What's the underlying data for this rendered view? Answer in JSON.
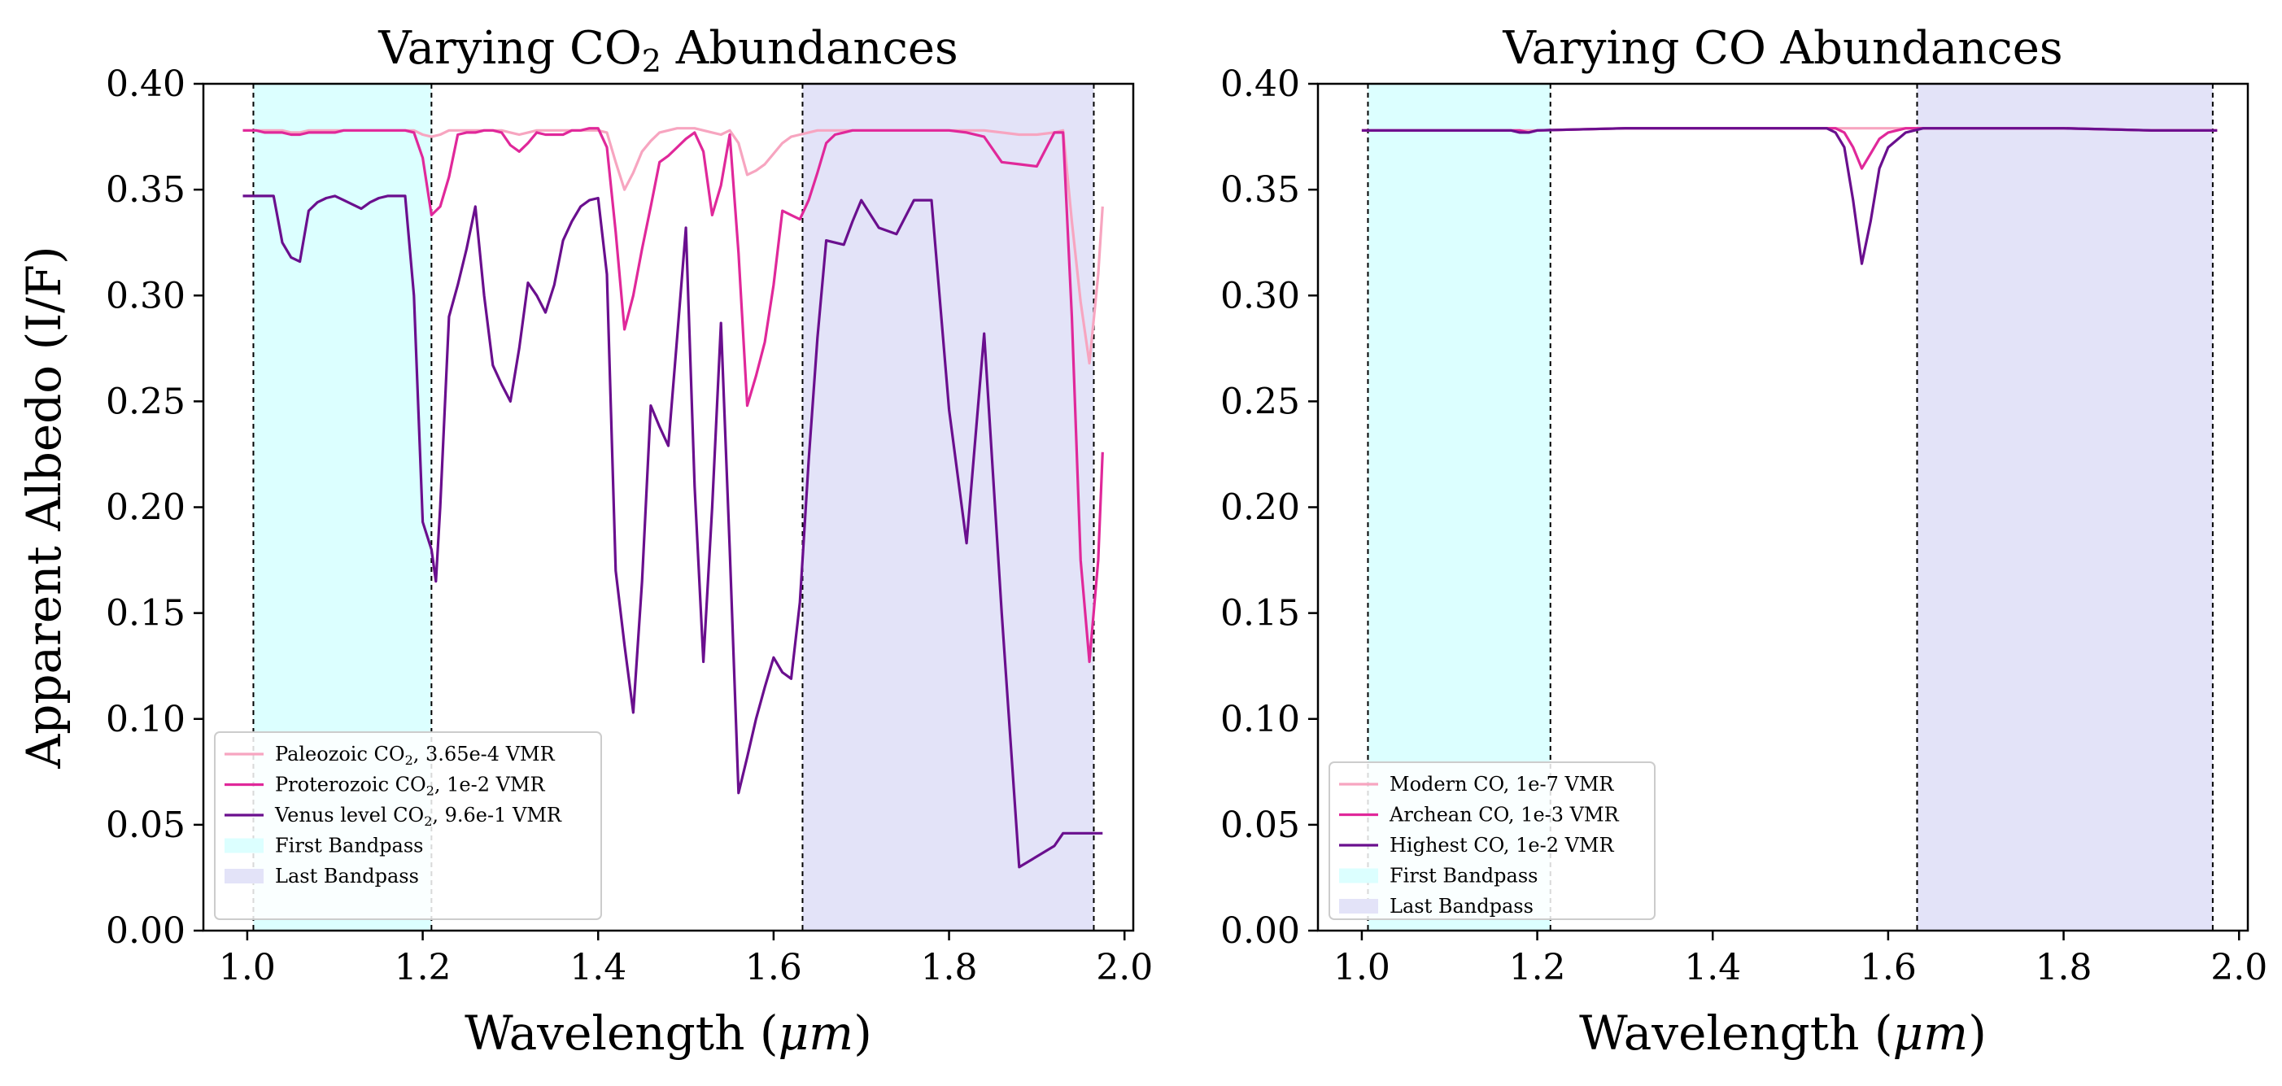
{
  "chart_data": [
    {
      "type": "line",
      "title": "Varying CO₂ Abundances",
      "title_parts": [
        "Varying CO",
        "2",
        " Abundances"
      ],
      "xlabel": "Wavelength (μm)",
      "xlabel_parts": [
        "Wavelength (",
        "μm",
        ")"
      ],
      "ylabel": "Apparent Albedo (I/F)",
      "xlim": [
        0.95,
        2.01
      ],
      "ylim": [
        0.0,
        0.4
      ],
      "xticks": [
        "1.0",
        "1.2",
        "1.4",
        "1.6",
        "1.8",
        "2.0"
      ],
      "xtick_values": [
        1.0,
        1.2,
        1.4,
        1.6,
        1.8,
        2.0
      ],
      "yticks": [
        "0.00",
        "0.05",
        "0.10",
        "0.15",
        "0.20",
        "0.25",
        "0.30",
        "0.35",
        "0.40"
      ],
      "ytick_values": [
        0.0,
        0.05,
        0.1,
        0.15,
        0.2,
        0.25,
        0.3,
        0.35,
        0.4
      ],
      "bandpasses": [
        {
          "name": "First Bandpass",
          "range": [
            1.007,
            1.21
          ],
          "color": "#dcffff"
        },
        {
          "name": "Last Bandpass",
          "range": [
            1.633,
            1.965
          ],
          "color": "#e3e3f8"
        }
      ],
      "series": [
        {
          "name": "Paleozoic CO₂, 3.65e-4 VMR",
          "legend_parts": [
            "Paleozoic CO",
            "2",
            ", 3.65e-4 VMR"
          ],
          "color": "#f7a5c0",
          "x": [
            0.995,
            1.01,
            1.02,
            1.03,
            1.04,
            1.05,
            1.06,
            1.07,
            1.08,
            1.09,
            1.1,
            1.11,
            1.12,
            1.13,
            1.14,
            1.15,
            1.16,
            1.17,
            1.18,
            1.19,
            1.2,
            1.21,
            1.22,
            1.23,
            1.24,
            1.25,
            1.26,
            1.27,
            1.28,
            1.29,
            1.3,
            1.31,
            1.32,
            1.33,
            1.34,
            1.35,
            1.36,
            1.37,
            1.38,
            1.39,
            1.4,
            1.41,
            1.42,
            1.43,
            1.44,
            1.45,
            1.46,
            1.47,
            1.48,
            1.49,
            1.5,
            1.51,
            1.52,
            1.53,
            1.54,
            1.55,
            1.56,
            1.57,
            1.58,
            1.59,
            1.6,
            1.61,
            1.62,
            1.63,
            1.64,
            1.65,
            1.66,
            1.67,
            1.68,
            1.69,
            1.7,
            1.72,
            1.74,
            1.76,
            1.78,
            1.8,
            1.82,
            1.84,
            1.86,
            1.88,
            1.9,
            1.92,
            1.93,
            1.94,
            1.95,
            1.96,
            1.97,
            1.975
          ],
          "y": [
            0.378,
            0.378,
            0.378,
            0.378,
            0.378,
            0.377,
            0.377,
            0.378,
            0.378,
            0.378,
            0.378,
            0.378,
            0.378,
            0.378,
            0.378,
            0.378,
            0.378,
            0.378,
            0.378,
            0.378,
            0.376,
            0.375,
            0.376,
            0.378,
            0.378,
            0.378,
            0.378,
            0.378,
            0.378,
            0.378,
            0.377,
            0.376,
            0.377,
            0.378,
            0.378,
            0.378,
            0.378,
            0.378,
            0.378,
            0.378,
            0.378,
            0.377,
            0.363,
            0.35,
            0.358,
            0.368,
            0.373,
            0.377,
            0.378,
            0.379,
            0.379,
            0.379,
            0.378,
            0.377,
            0.376,
            0.378,
            0.372,
            0.357,
            0.359,
            0.362,
            0.367,
            0.372,
            0.375,
            0.376,
            0.377,
            0.378,
            0.378,
            0.378,
            0.378,
            0.378,
            0.378,
            0.378,
            0.378,
            0.378,
            0.378,
            0.378,
            0.378,
            0.378,
            0.377,
            0.376,
            0.376,
            0.377,
            0.378,
            0.335,
            0.297,
            0.268,
            0.31,
            0.342
          ]
        },
        {
          "name": "Proterozoic CO₂, 1e-2 VMR",
          "legend_parts": [
            "Proterozoic CO",
            "2",
            ", 1e-2 VMR"
          ],
          "color": "#e0289a",
          "x": [
            0.995,
            1.01,
            1.02,
            1.03,
            1.04,
            1.05,
            1.06,
            1.07,
            1.08,
            1.09,
            1.1,
            1.11,
            1.12,
            1.13,
            1.14,
            1.15,
            1.16,
            1.17,
            1.18,
            1.19,
            1.2,
            1.21,
            1.22,
            1.23,
            1.24,
            1.25,
            1.26,
            1.27,
            1.28,
            1.29,
            1.3,
            1.31,
            1.32,
            1.33,
            1.34,
            1.35,
            1.36,
            1.37,
            1.38,
            1.39,
            1.4,
            1.41,
            1.42,
            1.43,
            1.44,
            1.45,
            1.46,
            1.47,
            1.48,
            1.49,
            1.5,
            1.51,
            1.52,
            1.53,
            1.54,
            1.55,
            1.56,
            1.57,
            1.58,
            1.59,
            1.6,
            1.61,
            1.62,
            1.63,
            1.64,
            1.65,
            1.66,
            1.67,
            1.68,
            1.69,
            1.7,
            1.72,
            1.74,
            1.76,
            1.78,
            1.8,
            1.82,
            1.84,
            1.86,
            1.88,
            1.9,
            1.92,
            1.93,
            1.94,
            1.95,
            1.96,
            1.97,
            1.975
          ],
          "y": [
            0.378,
            0.378,
            0.377,
            0.377,
            0.377,
            0.376,
            0.376,
            0.377,
            0.377,
            0.377,
            0.377,
            0.378,
            0.378,
            0.378,
            0.378,
            0.378,
            0.378,
            0.378,
            0.378,
            0.377,
            0.365,
            0.338,
            0.342,
            0.356,
            0.376,
            0.377,
            0.377,
            0.378,
            0.378,
            0.377,
            0.371,
            0.368,
            0.372,
            0.377,
            0.376,
            0.376,
            0.376,
            0.378,
            0.378,
            0.379,
            0.379,
            0.37,
            0.33,
            0.284,
            0.3,
            0.322,
            0.342,
            0.363,
            0.366,
            0.37,
            0.374,
            0.377,
            0.368,
            0.338,
            0.352,
            0.376,
            0.32,
            0.248,
            0.262,
            0.278,
            0.305,
            0.34,
            0.338,
            0.336,
            0.345,
            0.358,
            0.372,
            0.376,
            0.377,
            0.378,
            0.378,
            0.378,
            0.378,
            0.378,
            0.378,
            0.378,
            0.377,
            0.375,
            0.363,
            0.362,
            0.361,
            0.377,
            0.377,
            0.29,
            0.175,
            0.127,
            0.175,
            0.226
          ]
        },
        {
          "name": "Venus level CO₂, 9.6e-1 VMR",
          "legend_parts": [
            "Venus level CO",
            "2",
            ", 9.6e-1 VMR"
          ],
          "color": "#6a0f8e",
          "x": [
            0.995,
            1.01,
            1.02,
            1.03,
            1.04,
            1.05,
            1.06,
            1.07,
            1.08,
            1.09,
            1.1,
            1.11,
            1.12,
            1.13,
            1.14,
            1.15,
            1.16,
            1.17,
            1.18,
            1.19,
            1.2,
            1.21,
            1.215,
            1.22,
            1.23,
            1.24,
            1.25,
            1.26,
            1.27,
            1.28,
            1.29,
            1.3,
            1.31,
            1.32,
            1.33,
            1.34,
            1.35,
            1.36,
            1.37,
            1.38,
            1.39,
            1.4,
            1.41,
            1.42,
            1.43,
            1.44,
            1.45,
            1.46,
            1.47,
            1.48,
            1.49,
            1.5,
            1.51,
            1.52,
            1.53,
            1.54,
            1.55,
            1.56,
            1.57,
            1.58,
            1.59,
            1.6,
            1.61,
            1.62,
            1.63,
            1.64,
            1.65,
            1.66,
            1.67,
            1.68,
            1.69,
            1.7,
            1.72,
            1.74,
            1.76,
            1.78,
            1.8,
            1.82,
            1.84,
            1.86,
            1.88,
            1.9,
            1.92,
            1.93,
            1.94,
            1.95,
            1.96,
            1.97,
            1.975
          ],
          "y": [
            0.347,
            0.347,
            0.347,
            0.347,
            0.325,
            0.318,
            0.316,
            0.34,
            0.344,
            0.346,
            0.347,
            0.345,
            0.343,
            0.341,
            0.344,
            0.346,
            0.347,
            0.347,
            0.347,
            0.3,
            0.193,
            0.18,
            0.165,
            0.2,
            0.29,
            0.305,
            0.322,
            0.342,
            0.3,
            0.267,
            0.258,
            0.25,
            0.275,
            0.306,
            0.3,
            0.292,
            0.305,
            0.326,
            0.335,
            0.342,
            0.345,
            0.346,
            0.31,
            0.17,
            0.135,
            0.103,
            0.165,
            0.248,
            0.238,
            0.229,
            0.28,
            0.332,
            0.21,
            0.127,
            0.2,
            0.287,
            0.18,
            0.065,
            0.082,
            0.1,
            0.115,
            0.129,
            0.122,
            0.119,
            0.155,
            0.222,
            0.28,
            0.326,
            0.325,
            0.324,
            0.335,
            0.345,
            0.332,
            0.329,
            0.345,
            0.345,
            0.246,
            0.183,
            0.282,
            0.15,
            0.03,
            0.035,
            0.04,
            0.046,
            0.046,
            0.046,
            0.046,
            0.046,
            0.046
          ]
        }
      ],
      "legend": [
        "Paleozoic CO₂, 3.65e-4 VMR",
        "Proterozoic CO₂, 1e-2 VMR",
        "Venus level CO₂, 9.6e-1 VMR",
        "First Bandpass",
        "Last Bandpass"
      ],
      "legend_position": "lower-left"
    },
    {
      "type": "line",
      "title": "Varying CO Abundances",
      "xlabel": "Wavelength (μm)",
      "xlabel_parts": [
        "Wavelength (",
        "μm",
        ")"
      ],
      "ylabel": "",
      "xlim": [
        0.95,
        2.01
      ],
      "ylim": [
        0.0,
        0.4
      ],
      "xticks": [
        "1.0",
        "1.2",
        "1.4",
        "1.6",
        "1.8",
        "2.0"
      ],
      "xtick_values": [
        1.0,
        1.2,
        1.4,
        1.6,
        1.8,
        2.0
      ],
      "yticks": [
        "0.00",
        "0.05",
        "0.10",
        "0.15",
        "0.20",
        "0.25",
        "0.30",
        "0.35",
        "0.40"
      ],
      "ytick_values": [
        0.0,
        0.05,
        0.1,
        0.15,
        0.2,
        0.25,
        0.3,
        0.35,
        0.4
      ],
      "bandpasses": [
        {
          "name": "First Bandpass",
          "range": [
            1.007,
            1.215
          ],
          "color": "#dcffff"
        },
        {
          "name": "Last Bandpass",
          "range": [
            1.633,
            1.97
          ],
          "color": "#e3e3f8"
        }
      ],
      "series": [
        {
          "name": "Modern CO, 1e-7 VMR",
          "color": "#f7a5c0",
          "x": [
            1.0,
            1.1,
            1.18,
            1.2,
            1.3,
            1.4,
            1.5,
            1.53,
            1.54,
            1.55,
            1.56,
            1.57,
            1.58,
            1.59,
            1.6,
            1.62,
            1.64,
            1.7,
            1.8,
            1.9,
            1.975
          ],
          "y": [
            0.378,
            0.378,
            0.378,
            0.378,
            0.379,
            0.379,
            0.379,
            0.379,
            0.379,
            0.379,
            0.379,
            0.379,
            0.379,
            0.379,
            0.379,
            0.379,
            0.379,
            0.379,
            0.379,
            0.378,
            0.378
          ]
        },
        {
          "name": "Archean CO, 1e-3 VMR",
          "color": "#e0289a",
          "x": [
            1.0,
            1.1,
            1.18,
            1.19,
            1.2,
            1.3,
            1.4,
            1.5,
            1.53,
            1.54,
            1.55,
            1.56,
            1.57,
            1.58,
            1.59,
            1.6,
            1.62,
            1.64,
            1.7,
            1.8,
            1.9,
            1.975
          ],
          "y": [
            0.378,
            0.378,
            0.378,
            0.377,
            0.378,
            0.379,
            0.379,
            0.379,
            0.379,
            0.379,
            0.377,
            0.37,
            0.36,
            0.367,
            0.374,
            0.377,
            0.379,
            0.379,
            0.379,
            0.379,
            0.378,
            0.378
          ]
        },
        {
          "name": "Highest CO, 1e-2 VMR",
          "color": "#6a0f8e",
          "x": [
            1.0,
            1.1,
            1.17,
            1.18,
            1.19,
            1.2,
            1.3,
            1.4,
            1.5,
            1.53,
            1.54,
            1.55,
            1.56,
            1.57,
            1.58,
            1.59,
            1.6,
            1.62,
            1.64,
            1.7,
            1.8,
            1.9,
            1.975
          ],
          "y": [
            0.378,
            0.378,
            0.378,
            0.377,
            0.377,
            0.378,
            0.379,
            0.379,
            0.379,
            0.379,
            0.377,
            0.37,
            0.345,
            0.315,
            0.335,
            0.36,
            0.37,
            0.377,
            0.379,
            0.379,
            0.379,
            0.378,
            0.378
          ]
        }
      ],
      "legend": [
        "Modern CO, 1e-7 VMR",
        "Archean CO, 1e-3 VMR",
        "Highest CO, 1e-2 VMR",
        "First Bandpass",
        "Last Bandpass"
      ],
      "legend_position": "lower-left"
    }
  ]
}
